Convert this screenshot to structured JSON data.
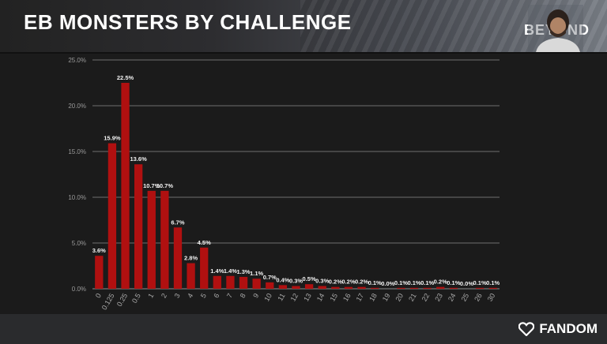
{
  "slide": {
    "title": "EB MONSTERS BY CHALLENGE",
    "brand": "BEYOND",
    "footer_brand": "FANDOM"
  },
  "chart_data": {
    "type": "bar",
    "title": "",
    "xlabel": "",
    "ylabel": "",
    "ylim": [
      0,
      25
    ],
    "yticks": [
      "0.0%",
      "5.0%",
      "10.0%",
      "15.0%",
      "20.0%",
      "25.0%"
    ],
    "grid": true,
    "bar_color": "#b01010",
    "categories": [
      "0",
      "0.125",
      "0.25",
      "0.5",
      "1",
      "2",
      "3",
      "4",
      "5",
      "6",
      "7",
      "8",
      "9",
      "10",
      "11",
      "12",
      "13",
      "14",
      "15",
      "16",
      "17",
      "18",
      "19",
      "20",
      "21",
      "22",
      "23",
      "24",
      "25",
      "26",
      "30"
    ],
    "values": [
      3.6,
      15.9,
      22.5,
      13.6,
      10.7,
      10.7,
      6.7,
      2.8,
      4.5,
      1.4,
      1.4,
      1.3,
      1.1,
      0.7,
      0.4,
      0.3,
      0.5,
      0.3,
      0.2,
      0.2,
      0.2,
      0.1,
      0.0,
      0.1,
      0.1,
      0.1,
      0.2,
      0.1,
      0.0,
      0.1,
      0.1
    ],
    "labels": [
      "3.6%",
      "15.9%",
      "22.5%",
      "13.6%",
      "10.7%",
      "10.7%",
      "6.7%",
      "2.8%",
      "4.5%",
      "1.4%",
      "1.4%",
      "1.3%",
      "1.1%",
      "0.7%",
      "0.4%",
      "0.3%",
      "0.5%",
      "0.3%",
      "0.2%",
      "0.2%",
      "0.2%",
      "0.1%",
      "0.0%",
      "0.1%",
      "0.1%",
      "0.1%",
      "0.2%",
      "0.1%",
      "0.0%",
      "0.1%",
      "0.1%"
    ]
  }
}
